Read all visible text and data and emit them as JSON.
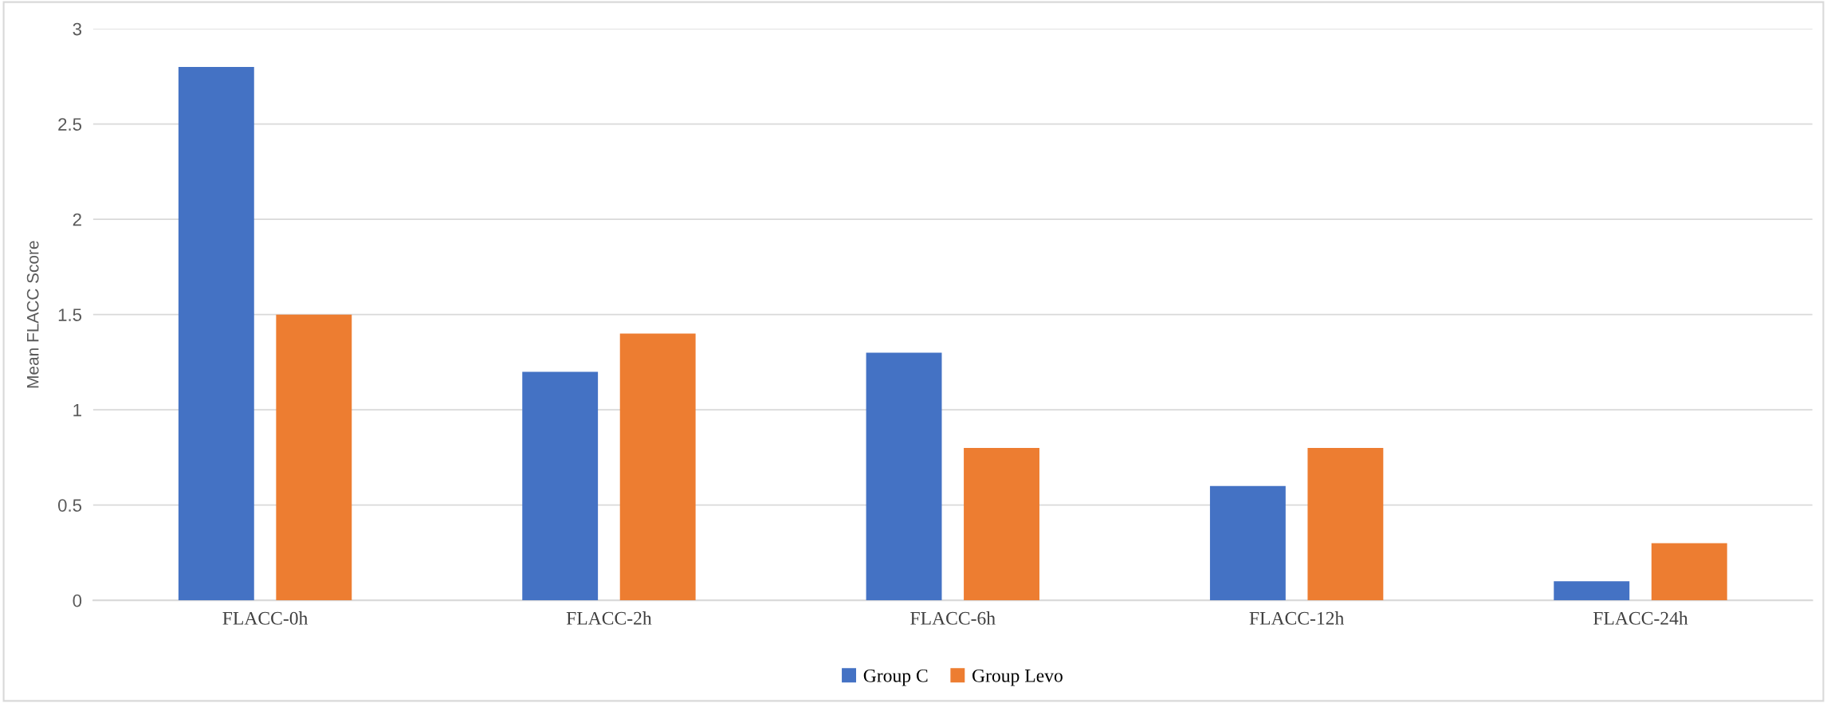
{
  "chart_data": {
    "type": "bar",
    "ylabel": "Mean FLACC Score",
    "categories": [
      "FLACC-0h",
      "FLACC-2h",
      "FLACC-6h",
      "FLACC-12h",
      "FLACC-24h"
    ],
    "series": [
      {
        "name": "Group C",
        "color": "#4472c4",
        "values": [
          2.8,
          1.2,
          1.3,
          0.6,
          0.1
        ]
      },
      {
        "name": "Group Levo",
        "color": "#ed7d31",
        "values": [
          1.5,
          1.4,
          0.8,
          0.8,
          0.3
        ]
      }
    ],
    "ylim": [
      0,
      3
    ],
    "yticks": [
      0,
      0.5,
      1,
      1.5,
      2,
      2.5,
      3
    ],
    "grid": "y",
    "legend": "bottom"
  }
}
